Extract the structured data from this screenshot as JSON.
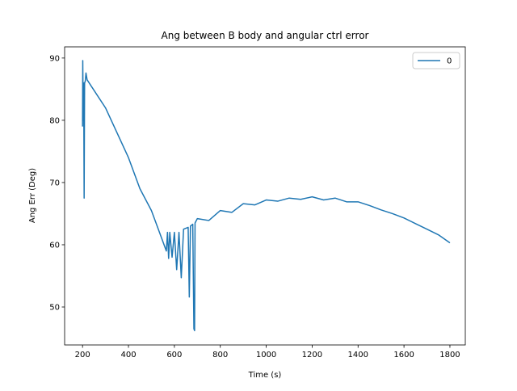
{
  "chart_data": {
    "type": "line",
    "title": "Ang between B body and angular ctrl error",
    "xlabel": "Time (s)",
    "ylabel": "Ang Err (Deg)",
    "x": [
      200,
      201,
      203,
      205,
      207,
      209,
      212,
      215,
      220,
      300,
      400,
      450,
      500,
      540,
      565,
      570,
      575,
      580,
      590,
      600,
      610,
      620,
      630,
      640,
      660,
      665,
      670,
      680,
      685,
      688,
      690,
      700,
      750,
      800,
      850,
      900,
      950,
      1000,
      1050,
      1100,
      1150,
      1200,
      1250,
      1300,
      1350,
      1400,
      1450,
      1500,
      1550,
      1600,
      1650,
      1700,
      1750,
      1800
    ],
    "series": [
      {
        "name": "0",
        "color": "#1f77b4",
        "values": [
          79,
          89.6,
          80,
          86,
          67.5,
          86,
          86.3,
          87.6,
          86.5,
          82,
          74,
          69,
          65.5,
          61.5,
          59,
          62,
          57.8,
          62,
          58,
          62,
          56,
          62,
          54.7,
          62.5,
          62.8,
          51.6,
          63,
          63.3,
          46.5,
          46.2,
          63.5,
          64.2,
          63.9,
          65.5,
          65.2,
          66.6,
          66.4,
          67.2,
          67.0,
          67.5,
          67.3,
          67.7,
          67.2,
          67.5,
          66.9,
          66.9,
          66.3,
          65.6,
          65.0,
          64.3,
          63.4,
          62.5,
          61.6,
          60.3
        ]
      }
    ],
    "xlim": [
      122,
      1867
    ],
    "ylim": [
      43.9,
      91.8
    ],
    "xticks": [
      200,
      400,
      600,
      800,
      1000,
      1200,
      1400,
      1600,
      1800
    ],
    "yticks": [
      50,
      60,
      70,
      80,
      90
    ],
    "legend": "upper right"
  }
}
